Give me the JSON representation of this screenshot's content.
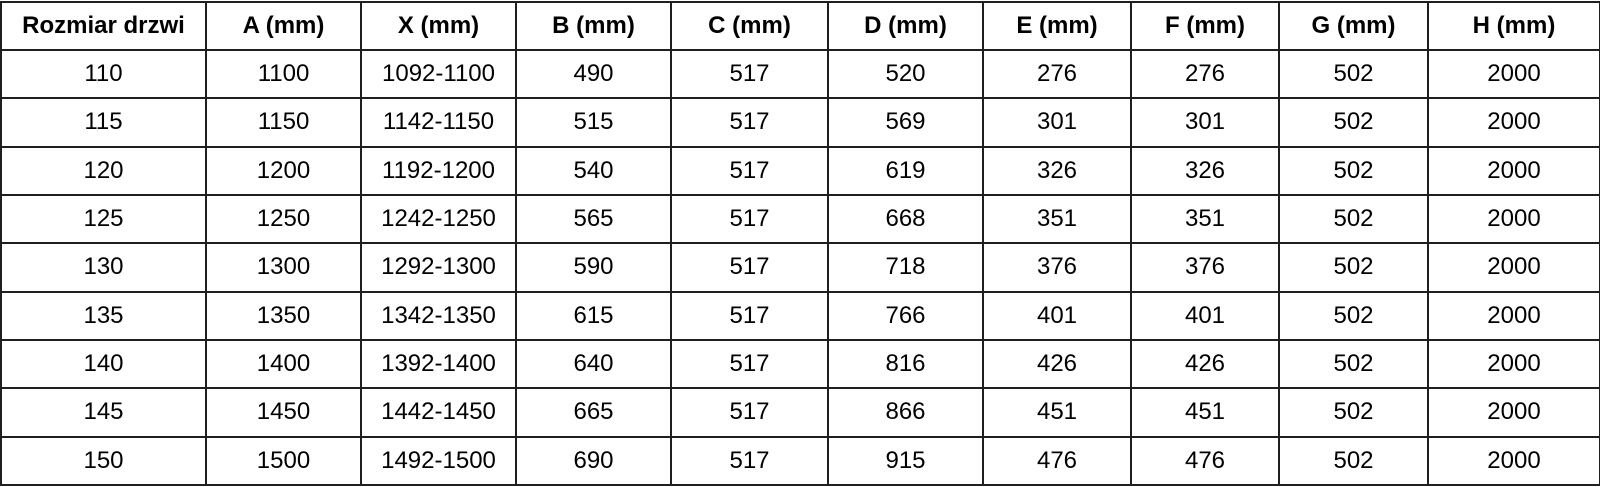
{
  "table": {
    "title": "door-dimensions-spec-table",
    "columns": [
      "Rozmiar drzwi",
      "A (mm)",
      "X (mm)",
      "B (mm)",
      "C (mm)",
      "D (mm)",
      "E (mm)",
      "F (mm)",
      "G (mm)",
      "H (mm)"
    ],
    "rows": [
      [
        "110",
        "1100",
        "1092-1100",
        "490",
        "517",
        "520",
        "276",
        "276",
        "502",
        "2000"
      ],
      [
        "115",
        "1150",
        "1142-1150",
        "515",
        "517",
        "569",
        "301",
        "301",
        "502",
        "2000"
      ],
      [
        "120",
        "1200",
        "1192-1200",
        "540",
        "517",
        "619",
        "326",
        "326",
        "502",
        "2000"
      ],
      [
        "125",
        "1250",
        "1242-1250",
        "565",
        "517",
        "668",
        "351",
        "351",
        "502",
        "2000"
      ],
      [
        "130",
        "1300",
        "1292-1300",
        "590",
        "517",
        "718",
        "376",
        "376",
        "502",
        "2000"
      ],
      [
        "135",
        "1350",
        "1342-1350",
        "615",
        "517",
        "766",
        "401",
        "401",
        "502",
        "2000"
      ],
      [
        "140",
        "1400",
        "1392-1400",
        "640",
        "517",
        "816",
        "426",
        "426",
        "502",
        "2000"
      ],
      [
        "145",
        "1450",
        "1442-1450",
        "665",
        "517",
        "866",
        "451",
        "451",
        "502",
        "2000"
      ],
      [
        "150",
        "1500",
        "1492-1500",
        "690",
        "517",
        "915",
        "476",
        "476",
        "502",
        "2000"
      ]
    ],
    "colors": {
      "border": "#1f1f1f",
      "background": "#ffffff",
      "text": "#000000"
    }
  }
}
